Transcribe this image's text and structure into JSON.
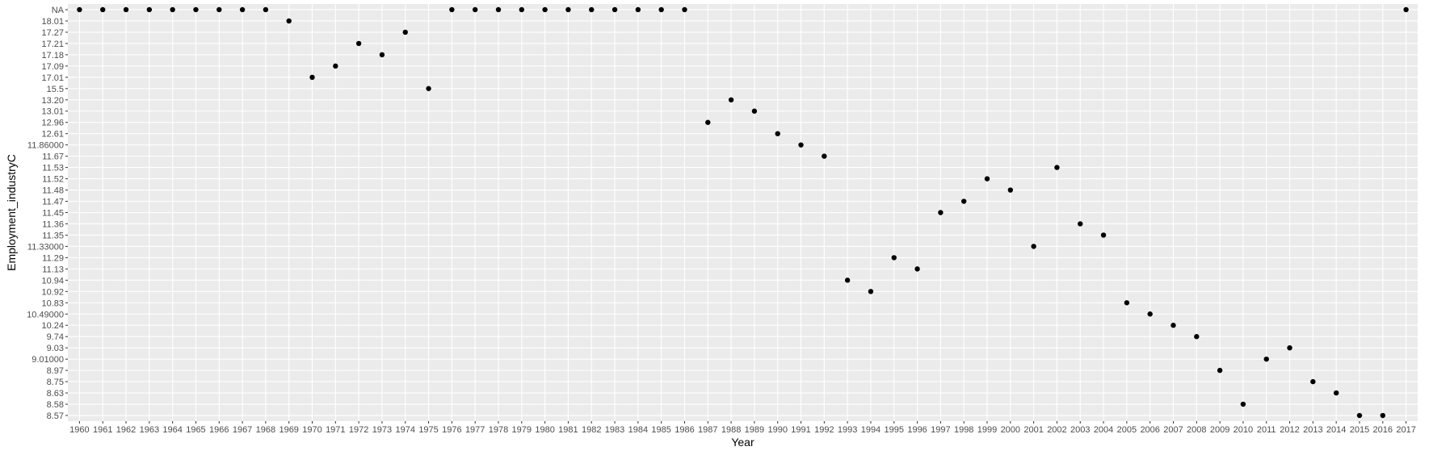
{
  "chart_data": {
    "type": "scatter",
    "title": "",
    "xlabel": "Year",
    "ylabel": "Employment_industryC",
    "x_categories": [
      "1960",
      "1961",
      "1962",
      "1963",
      "1964",
      "1965",
      "1966",
      "1967",
      "1968",
      "1969",
      "1970",
      "1971",
      "1972",
      "1973",
      "1974",
      "1975",
      "1976",
      "1977",
      "1978",
      "1979",
      "1980",
      "1981",
      "1982",
      "1983",
      "1984",
      "1985",
      "1986",
      "1987",
      "1988",
      "1989",
      "1990",
      "1991",
      "1992",
      "1993",
      "1994",
      "1995",
      "1996",
      "1997",
      "1998",
      "1999",
      "2000",
      "2001",
      "2002",
      "2003",
      "2004",
      "2005",
      "2006",
      "2007",
      "2008",
      "2009",
      "2010",
      "2011",
      "2012",
      "2013",
      "2014",
      "2015",
      "2016",
      "2017"
    ],
    "y_categories": [
      "8.57",
      "8.58",
      "8.63",
      "8.75",
      "8.97",
      "9.01000",
      "9.03",
      "9.74",
      "10.24",
      "10.49000",
      "10.83",
      "10.92",
      "10.94",
      "11.13",
      "11.29",
      "11.33000",
      "11.35",
      "11.36",
      "11.45",
      "11.47",
      "11.48",
      "11.52",
      "11.53",
      "11.67",
      "11.86000",
      "12.61",
      "12.96",
      "13.01",
      "13.20",
      "15.5",
      "17.01",
      "17.09",
      "17.18",
      "17.21",
      "17.27",
      "18.01",
      "NA"
    ],
    "points": [
      {
        "x": "1960",
        "y": "NA"
      },
      {
        "x": "1961",
        "y": "NA"
      },
      {
        "x": "1962",
        "y": "NA"
      },
      {
        "x": "1963",
        "y": "NA"
      },
      {
        "x": "1964",
        "y": "NA"
      },
      {
        "x": "1965",
        "y": "NA"
      },
      {
        "x": "1966",
        "y": "NA"
      },
      {
        "x": "1967",
        "y": "NA"
      },
      {
        "x": "1968",
        "y": "NA"
      },
      {
        "x": "1969",
        "y": "18.01"
      },
      {
        "x": "1970",
        "y": "17.01"
      },
      {
        "x": "1971",
        "y": "17.09"
      },
      {
        "x": "1972",
        "y": "17.21"
      },
      {
        "x": "1973",
        "y": "17.18"
      },
      {
        "x": "1974",
        "y": "17.27"
      },
      {
        "x": "1975",
        "y": "15.5"
      },
      {
        "x": "1976",
        "y": "NA"
      },
      {
        "x": "1977",
        "y": "NA"
      },
      {
        "x": "1978",
        "y": "NA"
      },
      {
        "x": "1979",
        "y": "NA"
      },
      {
        "x": "1980",
        "y": "NA"
      },
      {
        "x": "1981",
        "y": "NA"
      },
      {
        "x": "1982",
        "y": "NA"
      },
      {
        "x": "1983",
        "y": "NA"
      },
      {
        "x": "1984",
        "y": "NA"
      },
      {
        "x": "1985",
        "y": "NA"
      },
      {
        "x": "1986",
        "y": "NA"
      },
      {
        "x": "1987",
        "y": "12.96"
      },
      {
        "x": "1988",
        "y": "13.20"
      },
      {
        "x": "1989",
        "y": "13.01"
      },
      {
        "x": "1990",
        "y": "12.61"
      },
      {
        "x": "1991",
        "y": "11.86000"
      },
      {
        "x": "1992",
        "y": "11.67"
      },
      {
        "x": "1993",
        "y": "10.94"
      },
      {
        "x": "1994",
        "y": "10.92"
      },
      {
        "x": "1995",
        "y": "11.29"
      },
      {
        "x": "1996",
        "y": "11.13"
      },
      {
        "x": "1997",
        "y": "11.45"
      },
      {
        "x": "1998",
        "y": "11.47"
      },
      {
        "x": "1999",
        "y": "11.52"
      },
      {
        "x": "2000",
        "y": "11.48"
      },
      {
        "x": "2001",
        "y": "11.33000"
      },
      {
        "x": "2002",
        "y": "11.53"
      },
      {
        "x": "2003",
        "y": "11.36"
      },
      {
        "x": "2004",
        "y": "11.35"
      },
      {
        "x": "2005",
        "y": "10.83"
      },
      {
        "x": "2006",
        "y": "10.49000"
      },
      {
        "x": "2007",
        "y": "10.24"
      },
      {
        "x": "2008",
        "y": "9.74"
      },
      {
        "x": "2009",
        "y": "8.97"
      },
      {
        "x": "2010",
        "y": "8.58"
      },
      {
        "x": "2011",
        "y": "9.01000"
      },
      {
        "x": "2012",
        "y": "9.03"
      },
      {
        "x": "2013",
        "y": "8.75"
      },
      {
        "x": "2014",
        "y": "8.63"
      },
      {
        "x": "2015",
        "y": "8.57"
      },
      {
        "x": "2016",
        "y": "8.57"
      },
      {
        "x": "2017",
        "y": "NA"
      }
    ],
    "grid": true,
    "legend": "none",
    "colors": {
      "panel_background": "#ebebeb",
      "gridline": "#ffffff",
      "point": "#000000",
      "tick_text": "#4d4d4d",
      "tick_mark": "#333333"
    }
  }
}
